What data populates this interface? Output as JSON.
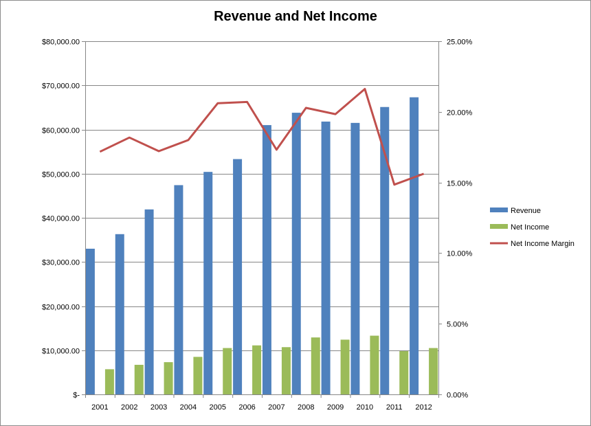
{
  "chart_data": {
    "type": "bar",
    "title": "Revenue and Net Income",
    "categories": [
      "2001",
      "2002",
      "2003",
      "2004",
      "2005",
      "2006",
      "2007",
      "2008",
      "2009",
      "2010",
      "2011",
      "2012"
    ],
    "series": [
      {
        "name": "Revenue",
        "kind": "bar",
        "axis": "left",
        "color": "#4f81bd",
        "values": [
          33000,
          36300,
          41900,
          47400,
          50400,
          53300,
          61000,
          63800,
          61800,
          61500,
          65100,
          67300
        ]
      },
      {
        "name": "Net Income",
        "kind": "bar",
        "axis": "left",
        "color": "#9bbb59",
        "values": [
          5700,
          6700,
          7300,
          8500,
          10500,
          11100,
          10700,
          12900,
          12400,
          13300,
          9800,
          10500
        ]
      },
      {
        "name": "Net Income Margin",
        "kind": "line",
        "axis": "right",
        "color": "#c0504d",
        "values": [
          0.1718,
          0.1818,
          0.1722,
          0.18,
          0.2061,
          0.207,
          0.1732,
          0.2028,
          0.1984,
          0.2162,
          0.1485,
          0.1562
        ]
      }
    ],
    "y_left": {
      "ylim": [
        0,
        80000
      ],
      "tick_values": [
        0,
        10000,
        20000,
        30000,
        40000,
        50000,
        60000,
        70000,
        80000
      ],
      "tick_labels": [
        "$-",
        "$10,000.00",
        "$20,000.00",
        "$30,000.00",
        "$40,000.00",
        "$50,000.00",
        "$60,000.00",
        "$70,000.00",
        "$80,000.00"
      ]
    },
    "y_right": {
      "ylim": [
        0,
        0.25
      ],
      "tick_values": [
        0,
        0.05,
        0.1,
        0.15,
        0.2,
        0.25
      ],
      "tick_labels": [
        "0.00%",
        "5.00%",
        "10.00%",
        "15.00%",
        "20.00%",
        "25.00%"
      ]
    },
    "grid": true,
    "legend_position": "right",
    "xlabel": "",
    "ylabel": ""
  }
}
